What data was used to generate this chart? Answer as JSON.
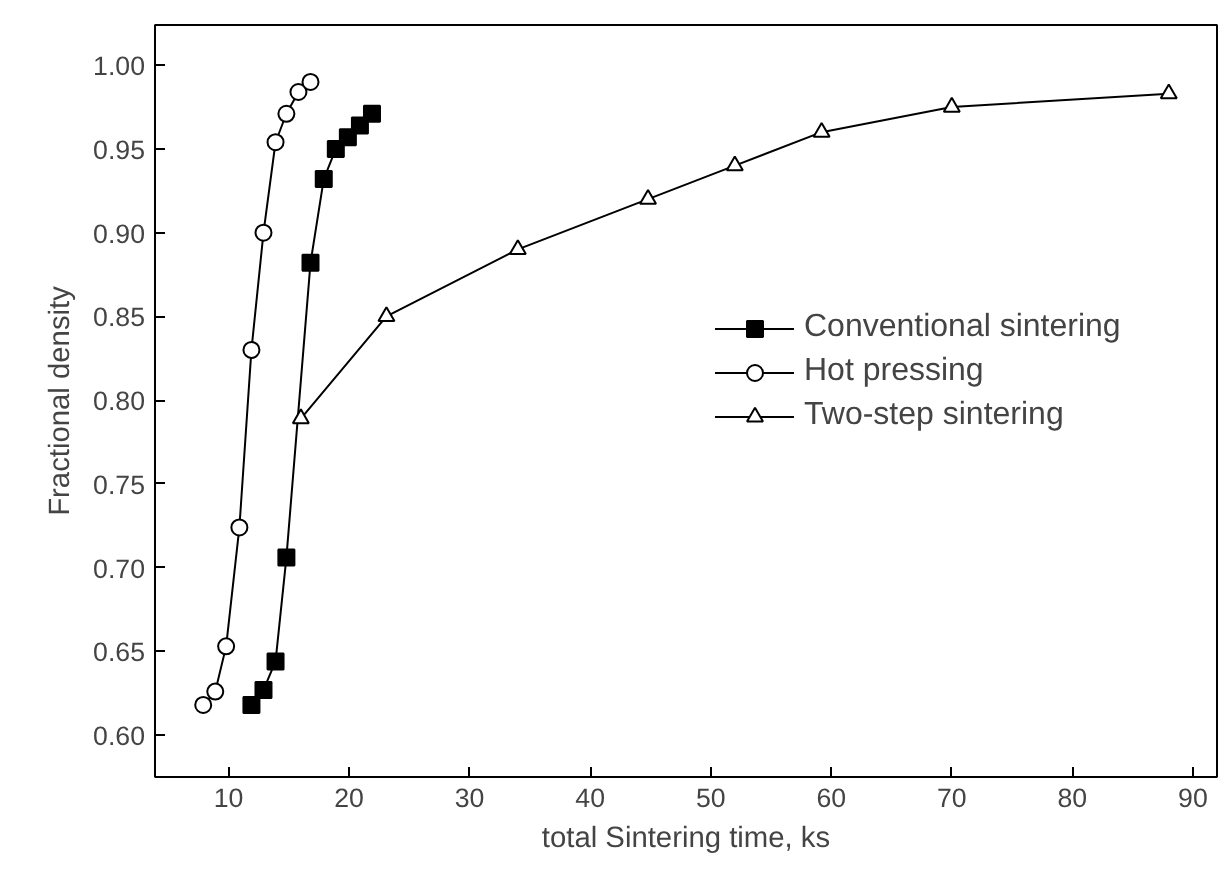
{
  "chart_data": {
    "type": "line",
    "xlabel": "total Sintering time, ks",
    "ylabel": "Fractional density",
    "xlim": [
      3.9,
      92
    ],
    "ylim": [
      0.575,
      1.024
    ],
    "xticks": [
      10,
      20,
      30,
      40,
      50,
      60,
      70,
      80,
      90
    ],
    "yticks": [
      {
        "value": 0.6,
        "label": "0.60"
      },
      0.65,
      {
        "value": 0.7,
        "label": "0.70"
      },
      0.75,
      {
        "value": 0.8,
        "label": "0.80"
      },
      0.85,
      {
        "value": 0.9,
        "label": "0.90"
      },
      0.95,
      {
        "value": 1.0,
        "label": "1.00"
      }
    ],
    "grid": false,
    "legend": "right",
    "series": [
      {
        "name": "Conventional sintering",
        "color": "#000000",
        "marker": "square",
        "x": [
          11.9,
          12.9,
          13.9,
          14.8,
          16.8,
          17.9,
          18.9,
          19.9,
          20.9,
          21.9
        ],
        "values": [
          0.618,
          0.627,
          0.644,
          0.706,
          0.882,
          0.932,
          0.95,
          0.957,
          0.964,
          0.971
        ]
      },
      {
        "name": "Hot pressing",
        "color": "#000000",
        "marker": "circle",
        "x": [
          7.9,
          8.9,
          9.8,
          10.9,
          11.9,
          12.9,
          13.9,
          14.8,
          15.8,
          16.8
        ],
        "values": [
          0.618,
          0.626,
          0.653,
          0.724,
          0.83,
          0.9,
          0.954,
          0.971,
          0.984,
          0.99
        ]
      },
      {
        "name": "Two-step sintering",
        "color": "#000000",
        "marker": "triangle",
        "x": [
          16,
          23.1,
          34,
          44.8,
          52,
          59.2,
          70,
          88
        ],
        "values": [
          0.789,
          0.85,
          0.89,
          0.92,
          0.94,
          0.96,
          0.975,
          0.983
        ]
      }
    ]
  }
}
